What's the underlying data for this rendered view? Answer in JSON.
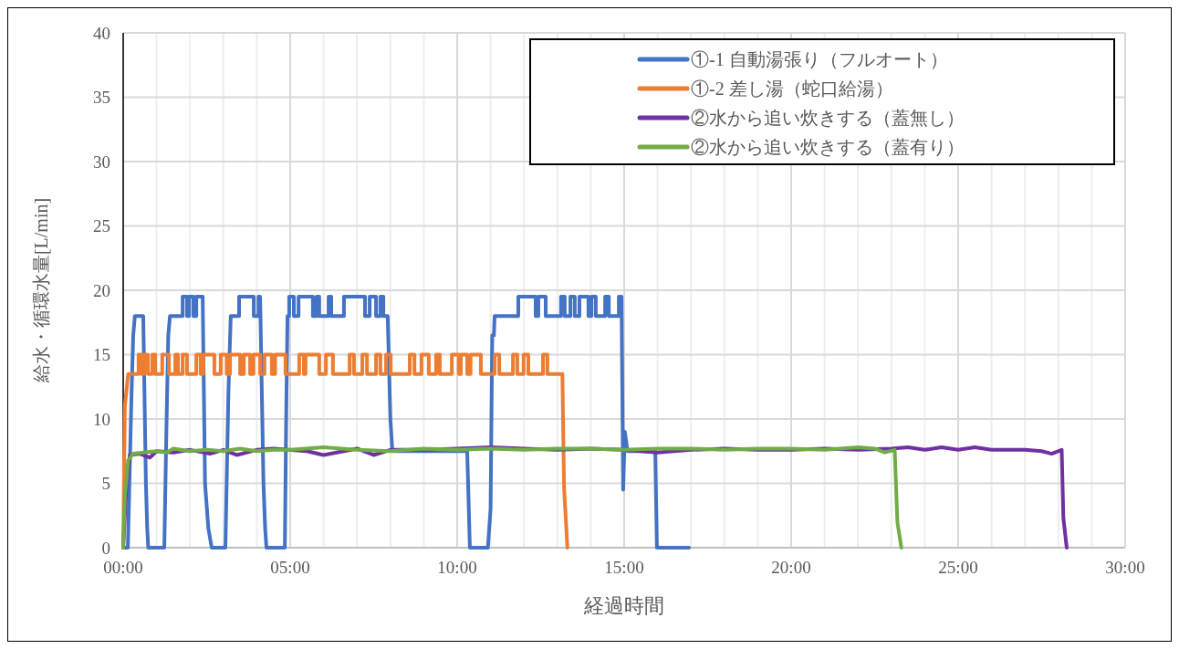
{
  "chart_data": {
    "type": "line",
    "xlabel": "経過時間",
    "ylabel": "給水・循環水量[L/min]",
    "xlim": [
      0,
      30
    ],
    "ylim": [
      0,
      40
    ],
    "xticks": [
      {
        "value": 0,
        "label": "00:00"
      },
      {
        "value": 1,
        "label": null
      },
      {
        "value": 2,
        "label": null
      },
      {
        "value": 3,
        "label": null
      },
      {
        "value": 4,
        "label": null
      },
      {
        "value": 5,
        "label": "05:00"
      },
      {
        "value": 6,
        "label": null
      },
      {
        "value": 7,
        "label": null
      },
      {
        "value": 8,
        "label": null
      },
      {
        "value": 9,
        "label": null
      },
      {
        "value": 10,
        "label": "10:00"
      },
      {
        "value": 11,
        "label": null
      },
      {
        "value": 12,
        "label": null
      },
      {
        "value": 13,
        "label": null
      },
      {
        "value": 14,
        "label": null
      },
      {
        "value": 15,
        "label": "15:00"
      },
      {
        "value": 16,
        "label": null
      },
      {
        "value": 17,
        "label": null
      },
      {
        "value": 18,
        "label": null
      },
      {
        "value": 19,
        "label": null
      },
      {
        "value": 20,
        "label": "20:00"
      },
      {
        "value": 21,
        "label": null
      },
      {
        "value": 22,
        "label": null
      },
      {
        "value": 23,
        "label": null
      },
      {
        "value": 24,
        "label": null
      },
      {
        "value": 25,
        "label": "25:00"
      },
      {
        "value": 26,
        "label": null
      },
      {
        "value": 27,
        "label": null
      },
      {
        "value": 28,
        "label": null
      },
      {
        "value": 29,
        "label": null
      },
      {
        "value": 30,
        "label": "30:00"
      }
    ],
    "yticks": [
      0,
      5,
      10,
      15,
      20,
      25,
      30,
      35,
      40
    ],
    "grid": true,
    "legend": "top right",
    "marker": "none",
    "line_style": "solid",
    "series": [
      {
        "name": "①-1  自動湯張り（フルオート）",
        "color": "#4472c4",
        "x": [
          0,
          0.14,
          0.25,
          0.3,
          0.35,
          0.6,
          0.68,
          0.72,
          0.75,
          1.23,
          1.3,
          1.35,
          1.4,
          1.78,
          1.78,
          1.91,
          1.91,
          1.97,
          1.97,
          2.1,
          2.1,
          2.19,
          2.19,
          2.38,
          2.45,
          2.55,
          2.65,
          3.06,
          3.15,
          3.22,
          3.47,
          3.47,
          3.91,
          3.91,
          4.05,
          4.05,
          4.1,
          4.2,
          4.25,
          4.29,
          4.84,
          4.88,
          4.92,
          4.97,
          4.97,
          5.11,
          5.11,
          5.25,
          5.25,
          5.68,
          5.68,
          5.79,
          5.79,
          5.87,
          5.87,
          6.15,
          6.15,
          6.23,
          6.23,
          6.61,
          6.61,
          7.24,
          7.24,
          7.38,
          7.38,
          7.57,
          7.57,
          7.7,
          7.7,
          7.79,
          7.79,
          7.92,
          8.0,
          8.06,
          10.3,
          10.38,
          10.92,
          11.0,
          11.05,
          11.1,
          11.12,
          11.83,
          11.83,
          12.35,
          12.35,
          12.43,
          12.43,
          12.65,
          12.65,
          13.11,
          13.11,
          13.22,
          13.22,
          13.39,
          13.39,
          13.52,
          13.52,
          13.66,
          13.66,
          13.93,
          13.93,
          14.02,
          14.02,
          14.15,
          14.15,
          14.43,
          14.43,
          14.54,
          14.54,
          14.84,
          14.84,
          14.92,
          14.97,
          15.02,
          15.1,
          15.93,
          15.98,
          16.94
        ],
        "values": [
          0,
          0,
          12,
          16.5,
          18,
          18,
          5,
          1.5,
          0,
          0,
          10,
          16.5,
          18,
          18,
          19.5,
          19.5,
          18,
          18,
          19.5,
          19.5,
          18,
          18,
          19.5,
          19.5,
          5,
          1.5,
          0,
          0,
          12,
          18,
          18,
          19.5,
          19.5,
          18,
          18,
          19.5,
          19.5,
          5,
          1.5,
          0,
          0,
          10,
          18,
          18,
          19.5,
          19.5,
          18,
          18,
          19.5,
          19.5,
          18,
          18,
          19.5,
          19.5,
          18,
          18,
          19.5,
          19.5,
          18,
          18,
          19.5,
          19.5,
          18,
          18,
          19.5,
          19.5,
          18,
          18,
          19.5,
          19.5,
          18,
          18,
          10,
          7.5,
          7.5,
          0,
          0,
          3,
          16.5,
          16.5,
          18,
          18,
          19.5,
          19.5,
          18,
          18,
          19.5,
          19.5,
          18,
          18,
          19.5,
          19.5,
          18,
          18,
          19.5,
          19.5,
          18,
          18,
          19.5,
          19.5,
          18,
          18,
          19.5,
          19.5,
          18,
          18,
          19.5,
          19.5,
          18,
          18,
          19.5,
          19.5,
          4.5,
          9,
          7.5,
          7.5,
          0,
          0
        ]
      },
      {
        "name": "①-2  差し湯（蛇口給湯）",
        "color": "#ed7d31",
        "x": [
          0,
          0.05,
          0.15,
          0.46,
          0.46,
          0.55,
          0.55,
          0.63,
          0.63,
          0.74,
          0.74,
          0.87,
          0.87,
          0.96,
          0.96,
          1.17,
          1.17,
          1.37,
          1.37,
          1.56,
          1.56,
          1.64,
          1.64,
          1.78,
          1.78,
          1.91,
          1.91,
          2.19,
          2.19,
          2.32,
          2.32,
          2.4,
          2.4,
          2.73,
          2.73,
          2.92,
          2.92,
          3.1,
          3.1,
          3.2,
          3.2,
          3.5,
          3.5,
          3.61,
          3.61,
          3.8,
          3.8,
          3.9,
          3.9,
          4.1,
          4.1,
          4.23,
          4.23,
          4.45,
          4.45,
          4.55,
          4.55,
          4.86,
          4.86,
          5.27,
          5.27,
          5.41,
          5.41,
          5.46,
          5.46,
          5.87,
          5.87,
          6.07,
          6.07,
          6.28,
          6.28,
          6.78,
          6.78,
          6.91,
          6.91,
          7.16,
          7.16,
          7.3,
          7.3,
          7.57,
          7.57,
          7.7,
          7.7,
          7.87,
          7.87,
          8.01,
          8.01,
          8.58,
          8.58,
          8.72,
          8.72,
          8.93,
          8.93,
          9.15,
          9.15,
          9.37,
          9.37,
          9.48,
          9.48,
          9.84,
          9.84,
          10.05,
          10.05,
          10.11,
          10.11,
          10.3,
          10.3,
          10.4,
          10.4,
          10.71,
          10.71,
          11.12,
          11.12,
          11.26,
          11.26,
          11.67,
          11.67,
          11.8,
          11.8,
          11.99,
          11.99,
          12.13,
          12.13,
          12.57,
          12.57,
          12.7,
          12.7,
          13.15,
          13.2,
          13.3
        ],
        "values": [
          0,
          11,
          13.5,
          13.5,
          15,
          15,
          13.5,
          13.5,
          15,
          15,
          13.5,
          13.5,
          15,
          15,
          13.5,
          13.5,
          15,
          15,
          13.5,
          13.5,
          15,
          15,
          13.5,
          13.5,
          15,
          15,
          13.5,
          13.5,
          15,
          15,
          13.5,
          13.5,
          15,
          15,
          13.5,
          13.5,
          15,
          15,
          13.5,
          13.5,
          15,
          15,
          13.5,
          13.5,
          15,
          15,
          13.5,
          13.5,
          15,
          15,
          13.5,
          13.5,
          15,
          15,
          13.5,
          13.5,
          15,
          15,
          13.5,
          13.5,
          15,
          15,
          13.5,
          13.5,
          15,
          15,
          13.5,
          13.5,
          15,
          15,
          13.5,
          13.5,
          15,
          15,
          13.5,
          13.5,
          15,
          15,
          13.5,
          13.5,
          15,
          15,
          13.5,
          13.5,
          15,
          15,
          13.5,
          13.5,
          15,
          15,
          13.5,
          13.5,
          15,
          15,
          13.5,
          13.5,
          15,
          15,
          13.5,
          13.5,
          15,
          15,
          13.5,
          13.5,
          15,
          15,
          13.5,
          13.5,
          15,
          15,
          13.5,
          13.5,
          15,
          15,
          13.5,
          13.5,
          15,
          15,
          13.5,
          13.5,
          15,
          15,
          13.5,
          13.5,
          15,
          15,
          13.5,
          13.5,
          4.7,
          0
        ]
      },
      {
        "name": "②水から追い炊きする（蓋無し）",
        "color": "#7030a0",
        "x": [
          0,
          0.1,
          0.2,
          0.5,
          0.8,
          1.0,
          1.5,
          2.0,
          2.6,
          3.0,
          3.4,
          4.0,
          4.5,
          5.5,
          6.0,
          7.0,
          7.5,
          8.0,
          9.0,
          10.0,
          11.0,
          12.0,
          13.0,
          14.0,
          15.0,
          16.0,
          17.0,
          18.0,
          19.0,
          20.0,
          21.0,
          22.0,
          23.0,
          23.5,
          24.0,
          24.5,
          25.0,
          25.5,
          26.0,
          27.0,
          27.5,
          27.8,
          28.1,
          28.15,
          28.25
        ],
        "values": [
          0,
          5,
          7.2,
          7.3,
          7.0,
          7.5,
          7.4,
          7.6,
          7.3,
          7.6,
          7.2,
          7.6,
          7.7,
          7.5,
          7.2,
          7.7,
          7.2,
          7.6,
          7.6,
          7.7,
          7.8,
          7.7,
          7.6,
          7.7,
          7.6,
          7.4,
          7.6,
          7.7,
          7.6,
          7.6,
          7.7,
          7.6,
          7.7,
          7.8,
          7.6,
          7.8,
          7.6,
          7.8,
          7.6,
          7.6,
          7.5,
          7.3,
          7.6,
          2.3,
          0
        ]
      },
      {
        "name": "②水から追い炊きする（蓋有り）",
        "color": "#70ad47",
        "x": [
          0,
          0.05,
          0.15,
          0.3,
          0.6,
          1,
          1.3,
          1.5,
          2,
          2.5,
          3,
          3.5,
          4,
          4.5,
          5,
          6,
          7,
          8,
          9,
          10,
          11,
          12,
          13,
          14,
          15,
          16,
          17,
          18,
          19,
          20,
          21,
          22,
          22.5,
          22.8,
          23.1,
          23.18,
          23.3
        ],
        "values": [
          0,
          4,
          6.8,
          7.3,
          7.4,
          7.5,
          7.4,
          7.7,
          7.5,
          7.6,
          7.5,
          7.7,
          7.5,
          7.6,
          7.6,
          7.8,
          7.6,
          7.5,
          7.7,
          7.6,
          7.7,
          7.6,
          7.7,
          7.7,
          7.6,
          7.7,
          7.7,
          7.6,
          7.7,
          7.7,
          7.6,
          7.8,
          7.7,
          7.4,
          7.6,
          2,
          0
        ]
      }
    ]
  }
}
